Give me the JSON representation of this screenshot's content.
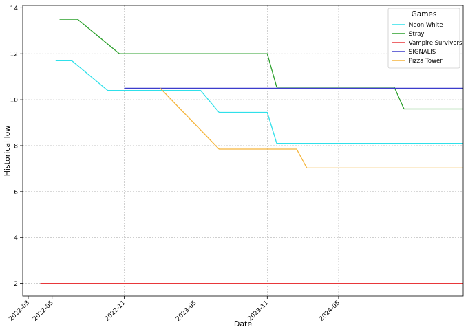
{
  "chart_data": {
    "type": "line",
    "xlabel": "Date",
    "ylabel": "Historical low",
    "xlim": [
      "2022-02-15",
      "2025-03-15"
    ],
    "ylim": [
      1.45,
      14.1
    ],
    "x_ticks": [
      {
        "date": "2022-03-01",
        "label": "2022-03"
      },
      {
        "date": "2022-05-01",
        "label": "2022-05"
      },
      {
        "date": "2022-11-01",
        "label": "2022-11"
      },
      {
        "date": "2023-05-01",
        "label": "2023-05"
      },
      {
        "date": "2023-11-01",
        "label": "2023-11"
      },
      {
        "date": "2024-05-01",
        "label": "2024-05"
      }
    ],
    "x_gridlines": [
      "2022-05-01",
      "2022-11-01",
      "2023-05-01",
      "2023-11-01",
      "2024-05-01"
    ],
    "y_ticks": [
      2,
      4,
      6,
      8,
      10,
      12,
      14
    ],
    "grid": true,
    "legend": {
      "title": "Games",
      "position": "top-right"
    },
    "series": [
      {
        "name": "Neon White",
        "color": "#2fe0ea",
        "points": [
          [
            "2022-05-10",
            11.7
          ],
          [
            "2022-06-20",
            11.7
          ],
          [
            "2022-09-20",
            10.4
          ],
          [
            "2023-05-15",
            10.4
          ],
          [
            "2023-07-01",
            9.45
          ],
          [
            "2023-11-01",
            9.45
          ],
          [
            "2023-11-25",
            8.1
          ],
          [
            "2025-03-15",
            8.1
          ]
        ]
      },
      {
        "name": "Stray",
        "color": "#2ca02c",
        "points": [
          [
            "2022-05-20",
            13.5
          ],
          [
            "2022-07-05",
            13.5
          ],
          [
            "2022-10-20",
            12.0
          ],
          [
            "2023-11-01",
            12.0
          ],
          [
            "2023-11-25",
            10.55
          ],
          [
            "2024-09-20",
            10.55
          ],
          [
            "2024-10-15",
            9.6
          ],
          [
            "2025-03-15",
            9.6
          ]
        ]
      },
      {
        "name": "Vampire Survivors",
        "color": "#e8373a",
        "points": [
          [
            "2022-04-01",
            2.0
          ],
          [
            "2025-03-15",
            2.0
          ]
        ]
      },
      {
        "name": "SIGNALIS",
        "color": "#3c3ccc",
        "points": [
          [
            "2022-11-01",
            10.5
          ],
          [
            "2025-03-15",
            10.5
          ]
        ]
      },
      {
        "name": "Pizza Tower",
        "color": "#f5b43a",
        "points": [
          [
            "2023-02-01",
            10.5
          ],
          [
            "2023-07-01",
            7.85
          ],
          [
            "2024-01-15",
            7.85
          ],
          [
            "2024-02-10",
            7.03
          ],
          [
            "2025-03-15",
            7.03
          ]
        ]
      }
    ]
  }
}
